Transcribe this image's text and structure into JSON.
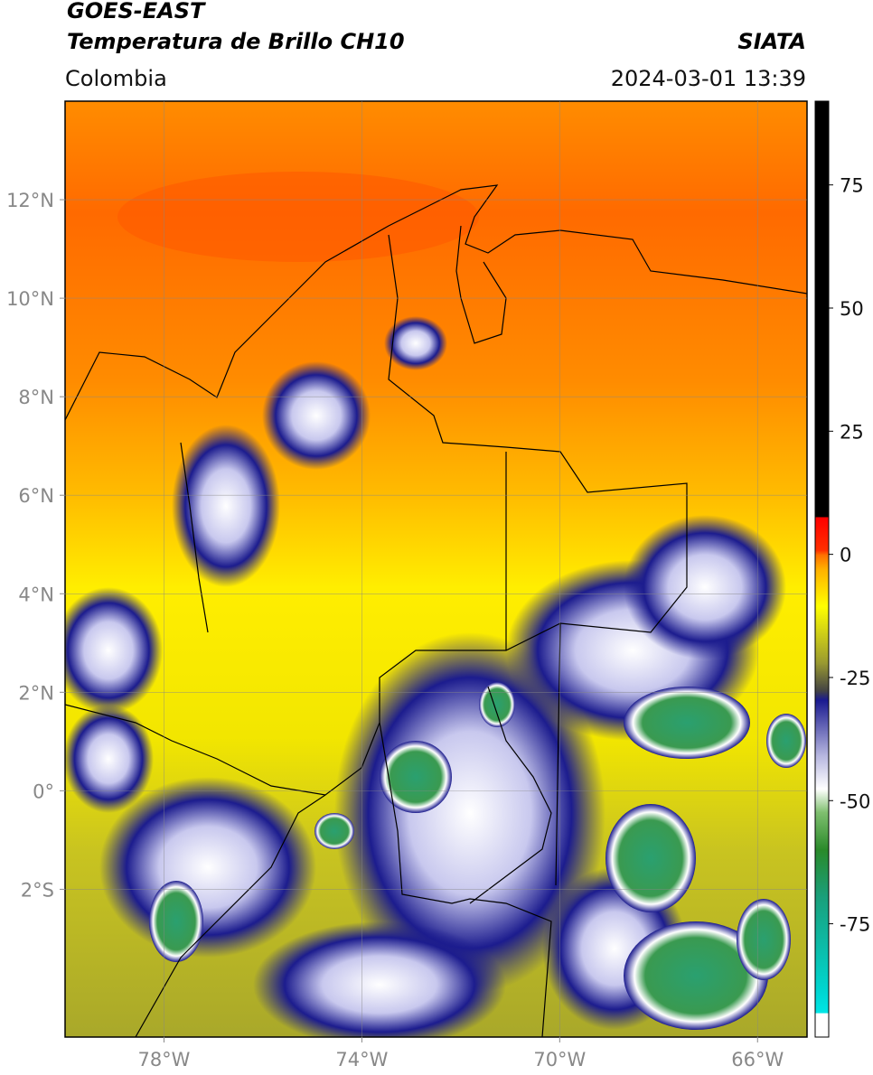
{
  "header": {
    "title": "GOES-EAST",
    "subtitle": "Temperatura de Brillo CH10",
    "source": "SIATA",
    "region": "Colombia",
    "datetime": "2024-03-01 13:39"
  },
  "map": {
    "lon_range": [
      -80,
      -65
    ],
    "lat_range": [
      -5,
      14
    ],
    "xticks": [
      {
        "value": -78,
        "label": "78°W"
      },
      {
        "value": -74,
        "label": "74°W"
      },
      {
        "value": -70,
        "label": "70°W"
      },
      {
        "value": -66,
        "label": "66°W"
      }
    ],
    "yticks": [
      {
        "value": 12,
        "label": "12°N"
      },
      {
        "value": 10,
        "label": "10°N"
      },
      {
        "value": 8,
        "label": "8°N"
      },
      {
        "value": 6,
        "label": "6°N"
      },
      {
        "value": 4,
        "label": "4°N"
      },
      {
        "value": 2,
        "label": "2°N"
      },
      {
        "value": 0,
        "label": "0°"
      },
      {
        "value": -2,
        "label": "2°S"
      }
    ]
  },
  "colorbar": {
    "range": [
      -98,
      92
    ],
    "ticks": [
      75,
      50,
      25,
      0,
      -25,
      -50,
      -75
    ]
  }
}
